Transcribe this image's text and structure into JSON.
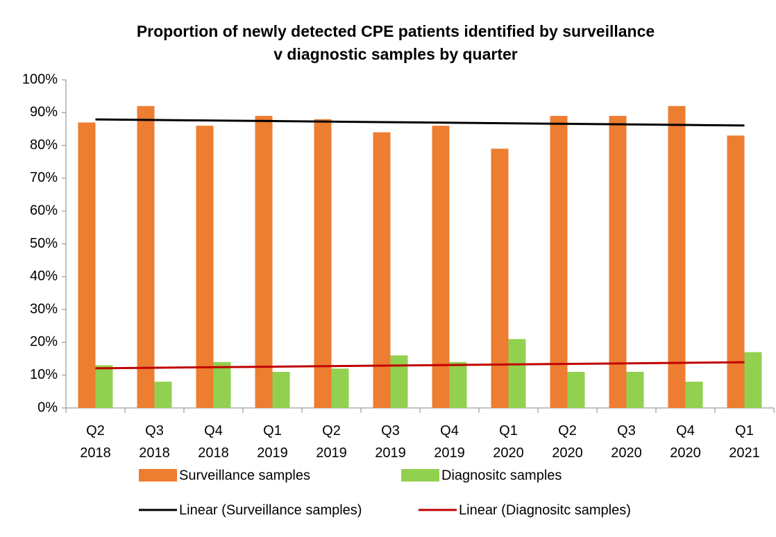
{
  "chart_data": {
    "type": "bar",
    "title": [
      "Proportion of newly detected CPE patients identified by surveillance",
      "v diagnostic samples by quarter"
    ],
    "categories": [
      "Q2 2018",
      "Q3 2018",
      "Q4 2018",
      "Q1 2019",
      "Q2 2019",
      "Q3 2019",
      "Q4 2019",
      "Q1 2020",
      "Q2 2020",
      "Q3 2020",
      "Q4 2020",
      "Q1 2021"
    ],
    "series": [
      {
        "name": "Surveillance samples",
        "color": "#ed7d31",
        "values": [
          87,
          92,
          86,
          89,
          88,
          84,
          86,
          79,
          89,
          89,
          92,
          83
        ],
        "trendline": {
          "type": "linear",
          "name": "Linear (Surveillance samples)",
          "color": "#000000"
        }
      },
      {
        "name": "Diagnositc samples",
        "color": "#92d050",
        "values": [
          13,
          8,
          14,
          11,
          12,
          16,
          14,
          21,
          11,
          11,
          8,
          17
        ],
        "trendline": {
          "type": "linear",
          "name": "Linear (Diagnositc samples)",
          "color": "#c00000"
        }
      }
    ],
    "ylim": [
      0,
      100
    ],
    "yticks": [
      {
        "value": 0,
        "label": "0%"
      },
      {
        "value": 10,
        "label": "10%"
      },
      {
        "value": 20,
        "label": "20%"
      },
      {
        "value": 30,
        "label": "30%"
      },
      {
        "value": 40,
        "label": "40%"
      },
      {
        "value": 50,
        "label": "50%"
      },
      {
        "value": 60,
        "label": "60%"
      },
      {
        "value": 70,
        "label": "70%"
      },
      {
        "value": 80,
        "label": "80%"
      },
      {
        "value": 90,
        "label": "90%"
      },
      {
        "value": 100,
        "label": "100%"
      }
    ],
    "grid": false,
    "legend": "bottom"
  }
}
